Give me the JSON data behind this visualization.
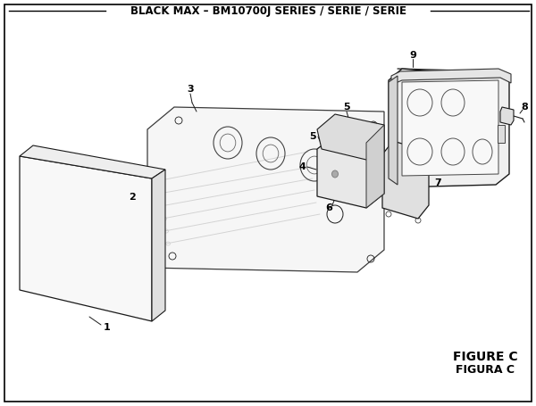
{
  "title": "BLACK MAX – BM10700J SERIES / SÉRIE / SERIE",
  "figure_label": "FIGURE C",
  "figura_label": "FIGURA C",
  "bg_color": "#ffffff",
  "border_color": "#000000",
  "title_fontsize": 8.5,
  "figure_label_fontsize": 10
}
